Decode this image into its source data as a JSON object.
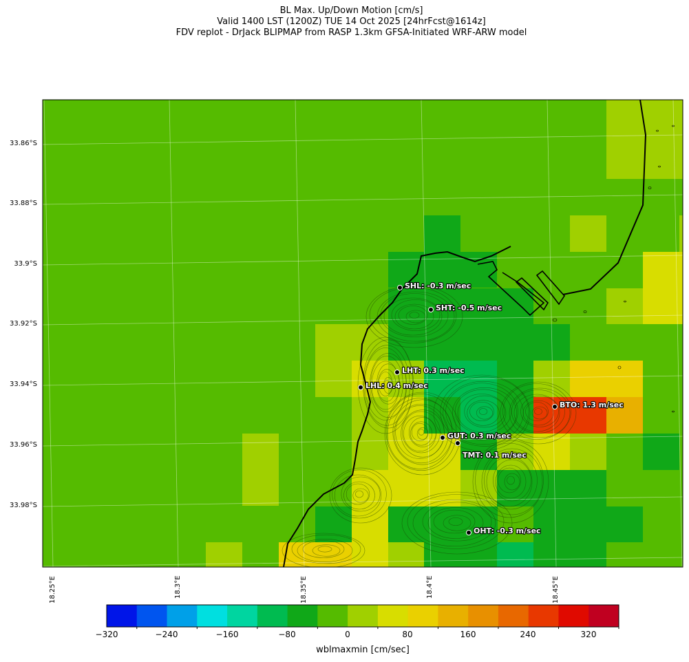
{
  "title": {
    "line1": "BL Max. Up/Down Motion [cm/s]",
    "line2": "Valid 1400 LST (1200Z) TUE 14 Oct 2025 [24hrFcst@1614z]",
    "line3": "FDV replot - DrJack BLIPMAP from RASP 1.3km GFSA-Initiated WRF-ARW model"
  },
  "lat_labels": [
    "33.86°S",
    "33.88°S",
    "33.9°S",
    "33.92°S",
    "33.94°S",
    "33.96°S",
    "33.98°S"
  ],
  "lon_labels": [
    "18.25°E",
    "18.3°E",
    "18.35°E",
    "18.4°E",
    "18.45°E"
  ],
  "stations": [
    {
      "label": "SHL: -0.3 m/sec"
    },
    {
      "label": "SHT: -0.5 m/sec"
    },
    {
      "label": "LHT: 0.3 m/sec"
    },
    {
      "label": "LHL: 0.4 m/sec"
    },
    {
      "label": "BTO: 1.3 m/sec"
    },
    {
      "label": "GUT: 0.3 m/sec"
    },
    {
      "label": "TMT: 0.1 m/sec"
    },
    {
      "label": "OHT: -0.3 m/sec"
    }
  ],
  "colorbar": {
    "label": "wblmaxmin [cm/sec]",
    "ticks": [
      "−320",
      "−240",
      "−160",
      "−80",
      "0",
      "80",
      "160",
      "240",
      "320"
    ],
    "min": -340,
    "max": 340,
    "colors": [
      "#0015e8",
      "#0055ef",
      "#00a0e8",
      "#00dfe0",
      "#00d5a0",
      "#00bb50",
      "#10a818",
      "#55bb00",
      "#a0d000",
      "#d8dd00",
      "#ead000",
      "#e8b000",
      "#e89000",
      "#e86800",
      "#e83800",
      "#e00a00",
      "#c00020"
    ]
  },
  "colors": {
    "background_field": "#55bb00",
    "land_outline": "#000000"
  }
}
